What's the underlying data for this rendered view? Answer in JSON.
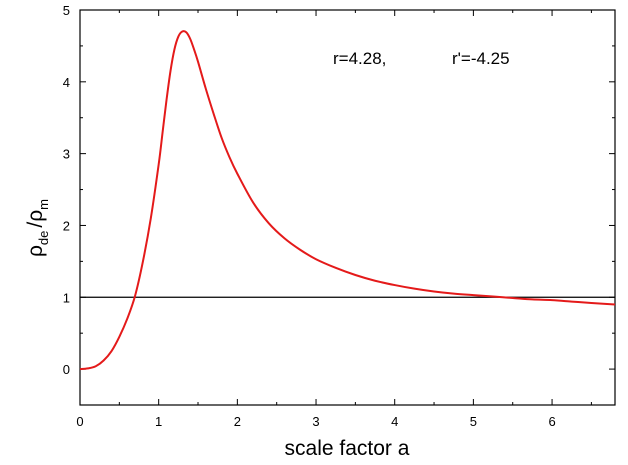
{
  "chart_data": {
    "type": "line",
    "title": "",
    "xlabel": "scale factor a",
    "ylabel": {
      "rho": "ρ",
      "de": "de",
      "slash": "/",
      "m": "m"
    },
    "xlim": [
      0,
      6.8
    ],
    "ylim": [
      -0.5,
      5
    ],
    "x_ticks": [
      "0",
      "1",
      "2",
      "3",
      "4",
      "5",
      "6"
    ],
    "y_ticks": [
      "0",
      "1",
      "2",
      "3",
      "4",
      "5"
    ],
    "grid": false,
    "annotations": [
      "r=4.28,",
      "r'=-4.25"
    ],
    "reference_line": {
      "y": 1,
      "color": "#000000"
    },
    "series": [
      {
        "color": "#e41a1a",
        "x": [
          0,
          0.1,
          0.2,
          0.3,
          0.4,
          0.5,
          0.6,
          0.7,
          0.8,
          0.9,
          1.0,
          1.05,
          1.1,
          1.15,
          1.2,
          1.25,
          1.3,
          1.35,
          1.4,
          1.45,
          1.5,
          1.6,
          1.7,
          1.8,
          1.9,
          2.0,
          2.2,
          2.4,
          2.6,
          2.8,
          3.0,
          3.25,
          3.5,
          3.75,
          4.0,
          4.25,
          4.5,
          4.75,
          5.0,
          5.25,
          5.5,
          5.75,
          6.0,
          6.25,
          6.5,
          6.8
        ],
        "y": [
          0.0,
          0.01,
          0.04,
          0.12,
          0.25,
          0.45,
          0.7,
          1.02,
          1.5,
          2.1,
          2.85,
          3.3,
          3.75,
          4.15,
          4.45,
          4.63,
          4.7,
          4.69,
          4.6,
          4.45,
          4.28,
          3.9,
          3.55,
          3.22,
          2.95,
          2.72,
          2.32,
          2.03,
          1.82,
          1.66,
          1.53,
          1.41,
          1.31,
          1.23,
          1.17,
          1.12,
          1.08,
          1.05,
          1.03,
          1.01,
          0.99,
          0.97,
          0.96,
          0.94,
          0.92,
          0.9
        ]
      }
    ]
  }
}
